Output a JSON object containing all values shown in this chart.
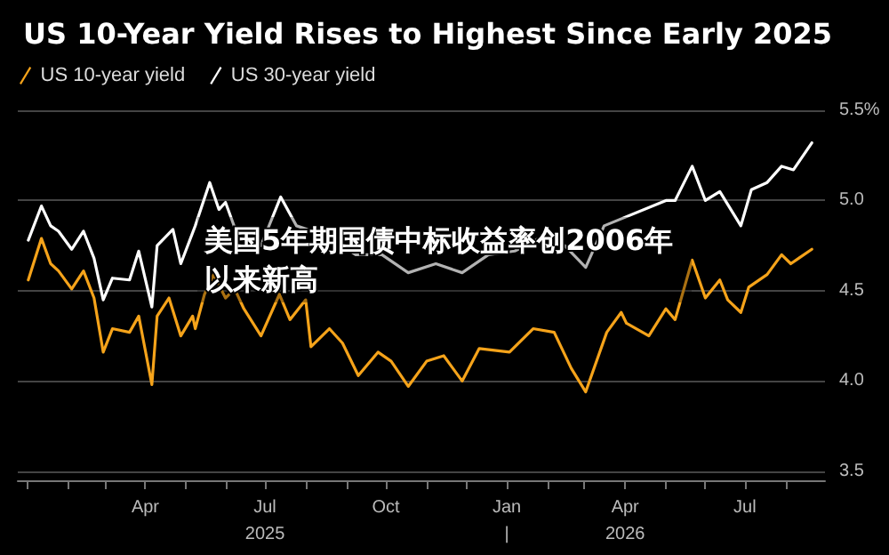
{
  "chart_data": {
    "type": "line",
    "title": "US 10-Year Yield Rises to Highest Since Early 2025",
    "series": [
      {
        "name": "US 10-year yield",
        "color": "#f5a31a",
        "x": [
          "2025-01-02",
          "2025-01-12",
          "2025-01-19",
          "2025-01-25",
          "2025-02-04",
          "2025-02-13",
          "2025-02-21",
          "2025-02-28",
          "2025-03-07",
          "2025-03-20",
          "2025-03-27",
          "2025-04-06",
          "2025-04-10",
          "2025-04-19",
          "2025-04-28",
          "2025-05-07",
          "2025-05-09",
          "2025-05-16",
          "2025-05-23",
          "2025-06-01",
          "2025-06-08",
          "2025-06-15",
          "2025-06-28",
          "2025-07-12",
          "2025-07-20",
          "2025-08-01",
          "2025-08-05",
          "2025-08-19",
          "2025-08-29",
          "2025-09-10",
          "2025-09-25",
          "2025-10-05",
          "2025-10-18",
          "2025-11-01",
          "2025-11-14",
          "2025-11-28",
          "2025-12-11",
          "2026-01-03",
          "2026-01-21",
          "2026-02-06",
          "2026-02-19",
          "2026-03-02",
          "2026-03-18",
          "2026-03-29",
          "2026-04-02",
          "2026-04-19",
          "2026-05-02",
          "2026-05-09",
          "2026-05-22",
          "2026-06-01",
          "2026-06-12",
          "2026-06-18",
          "2026-06-28",
          "2026-07-04",
          "2026-07-18",
          "2026-07-29",
          "2026-08-05",
          "2026-08-11",
          "2026-08-21"
        ],
        "values": [
          4.56,
          4.79,
          4.65,
          4.61,
          4.51,
          4.61,
          4.46,
          4.16,
          4.29,
          4.27,
          4.36,
          3.98,
          4.36,
          4.46,
          4.25,
          4.36,
          4.29,
          4.48,
          4.59,
          4.46,
          4.51,
          4.4,
          4.25,
          4.48,
          4.34,
          4.45,
          4.19,
          4.29,
          4.21,
          4.03,
          4.16,
          4.11,
          3.97,
          4.11,
          4.14,
          4.0,
          4.18,
          4.16,
          4.29,
          4.27,
          4.07,
          3.94,
          4.27,
          4.38,
          4.32,
          4.25,
          4.4,
          4.34,
          4.67,
          4.46,
          4.56,
          4.45,
          4.38,
          4.52,
          4.59,
          4.7,
          4.65,
          4.68,
          4.73
        ]
      },
      {
        "name": "US 30-year yield",
        "color": "#ffffff",
        "x": [
          "2025-01-02",
          "2025-01-12",
          "2025-01-19",
          "2025-01-25",
          "2025-02-04",
          "2025-02-13",
          "2025-02-21",
          "2025-02-28",
          "2025-03-07",
          "2025-03-20",
          "2025-03-27",
          "2025-04-06",
          "2025-04-10",
          "2025-04-22",
          "2025-04-28",
          "2025-05-09",
          "2025-05-20",
          "2025-05-27",
          "2025-06-01",
          "2025-06-09",
          "2025-06-28",
          "2025-07-13",
          "2025-07-25",
          "2025-08-19",
          "2025-09-08",
          "2025-09-28",
          "2025-10-18",
          "2025-11-08",
          "2025-11-28",
          "2025-12-18",
          "2026-01-07",
          "2026-01-28",
          "2026-02-14",
          "2026-03-02",
          "2026-03-16",
          "2026-05-02",
          "2026-05-09",
          "2026-05-22",
          "2026-06-01",
          "2026-06-12",
          "2026-06-28",
          "2026-07-06",
          "2026-07-18",
          "2026-07-29",
          "2026-08-07",
          "2026-08-21"
        ],
        "values": [
          4.78,
          4.97,
          4.86,
          4.83,
          4.73,
          4.83,
          4.68,
          4.45,
          4.57,
          4.56,
          4.72,
          4.41,
          4.75,
          4.84,
          4.65,
          4.86,
          5.1,
          4.95,
          4.99,
          4.83,
          4.75,
          5.02,
          4.86,
          4.8,
          4.7,
          4.7,
          4.6,
          4.65,
          4.6,
          4.7,
          4.72,
          4.8,
          4.75,
          4.63,
          4.86,
          5.0,
          5.0,
          5.19,
          5.0,
          5.05,
          4.86,
          5.06,
          5.1,
          5.19,
          5.17,
          5.32
        ]
      }
    ],
    "xlim": [
      "2024-12-25",
      "2026-08-31"
    ],
    "xticks": [
      {
        "value": "2025-01-01",
        "label": null
      },
      {
        "value": "2025-02-01",
        "label": null
      },
      {
        "value": "2025-03-01",
        "label": null
      },
      {
        "value": "2025-04-01",
        "label": "Apr"
      },
      {
        "value": "2025-05-01",
        "label": null
      },
      {
        "value": "2025-06-01",
        "label": null
      },
      {
        "value": "2025-07-01",
        "label": "Jul\n2025"
      },
      {
        "value": "2025-08-01",
        "label": null
      },
      {
        "value": "2025-09-01",
        "label": null
      },
      {
        "value": "2025-10-01",
        "label": "Oct"
      },
      {
        "value": "2025-11-01",
        "label": null
      },
      {
        "value": "2025-12-01",
        "label": null
      },
      {
        "value": "2026-01-01",
        "label": "Jan\n|"
      },
      {
        "value": "2026-02-01",
        "label": null
      },
      {
        "value": "2026-03-01",
        "label": null
      },
      {
        "value": "2026-04-01",
        "label": "Apr\n2026"
      },
      {
        "value": "2026-05-01",
        "label": null
      },
      {
        "value": "2026-06-01",
        "label": null
      },
      {
        "value": "2026-07-01",
        "label": "Jul"
      },
      {
        "value": "2026-08-01",
        "label": null
      }
    ],
    "ylim": [
      3.45,
      5.5
    ],
    "yticks": [
      {
        "value": 3.5,
        "label": "3.5"
      },
      {
        "value": 4.0,
        "label": "4.0"
      },
      {
        "value": 4.5,
        "label": "4.5"
      },
      {
        "value": 5.0,
        "label": "5.0"
      },
      {
        "value": 5.5,
        "label": "5.5%"
      }
    ],
    "grid": "y",
    "legend": "top left",
    "marker": "none",
    "line_style": "solid",
    "annotations": [
      "美国5年期国债中标收益率创2006年以来新高"
    ]
  }
}
